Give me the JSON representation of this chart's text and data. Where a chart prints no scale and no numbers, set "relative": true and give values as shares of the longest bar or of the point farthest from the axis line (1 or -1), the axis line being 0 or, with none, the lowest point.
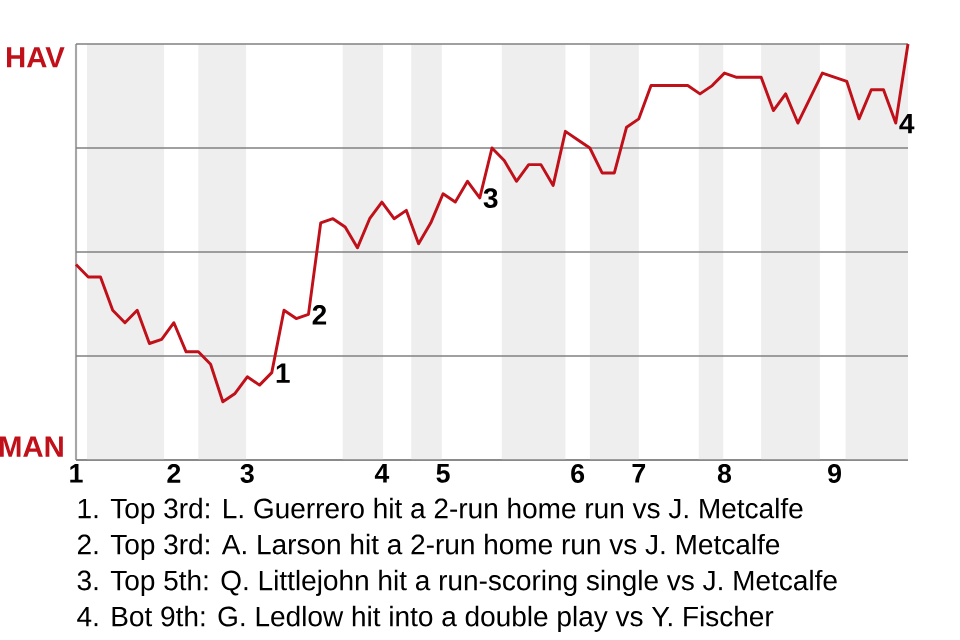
{
  "chart_data": {
    "type": "line",
    "relative": true,
    "marker": "none",
    "line_style": "solid",
    "categories": [
      "1",
      null,
      null,
      null,
      null,
      null,
      null,
      null,
      "2",
      null,
      null,
      null,
      null,
      null,
      "3",
      null,
      null,
      null,
      null,
      null,
      null,
      null,
      null,
      null,
      null,
      "4",
      null,
      null,
      null,
      null,
      "5",
      null,
      null,
      null,
      null,
      null,
      null,
      null,
      null,
      null,
      null,
      "6",
      null,
      null,
      null,
      null,
      "7",
      null,
      null,
      null,
      null,
      null,
      null,
      "8",
      null,
      null,
      null,
      null,
      null,
      null,
      null,
      null,
      "9",
      null,
      null,
      null,
      null,
      null,
      null
    ],
    "ref_lines": [
      {
        "axis": "y",
        "value": 0,
        "label": "MAN"
      },
      {
        "axis": "y",
        "value": 0.25
      },
      {
        "axis": "y",
        "value": 0.5
      },
      {
        "axis": "y",
        "value": 0.75
      },
      {
        "axis": "y",
        "value": 1,
        "label": "HAV"
      }
    ],
    "series": [
      {
        "color": "#c0101a",
        "values": [
          0.47,
          0.44,
          0.44,
          0.36,
          0.33,
          0.36,
          0.28,
          0.29,
          0.33,
          0.26,
          0.26,
          0.23,
          0.14,
          0.16,
          0.2,
          0.18,
          0.21,
          0.36,
          0.34,
          0.35,
          0.57,
          0.58,
          0.56,
          0.51,
          0.58,
          0.62,
          0.58,
          0.6,
          0.52,
          0.57,
          0.64,
          0.62,
          0.67,
          0.63,
          0.75,
          0.72,
          0.67,
          0.71,
          0.71,
          0.66,
          0.79,
          0.77,
          0.75,
          0.69,
          0.69,
          0.8,
          0.82,
          0.9,
          0.9,
          0.9,
          0.9,
          0.88,
          0.9,
          0.93,
          0.92,
          0.92,
          0.92,
          0.84,
          0.88,
          0.81,
          0.87,
          0.93,
          0.92,
          0.91,
          0.82,
          0.89,
          0.89,
          0.81,
          1
        ]
      }
    ],
    "annotations": [
      "1",
      "2",
      "3",
      "4",
      "1. Top 3rd: L. Guerrero hit a 2-run home run vs J. Metcalfe",
      "2. Top 3rd: A. Larson hit a 2-run home run vs J. Metcalfe",
      "3. Top 5th: Q. Littlejohn hit a run-scoring single vs J. Metcalfe",
      "4. Bot 9th: G. Ledlow hit into a double play vs Y. Fischer"
    ]
  }
}
